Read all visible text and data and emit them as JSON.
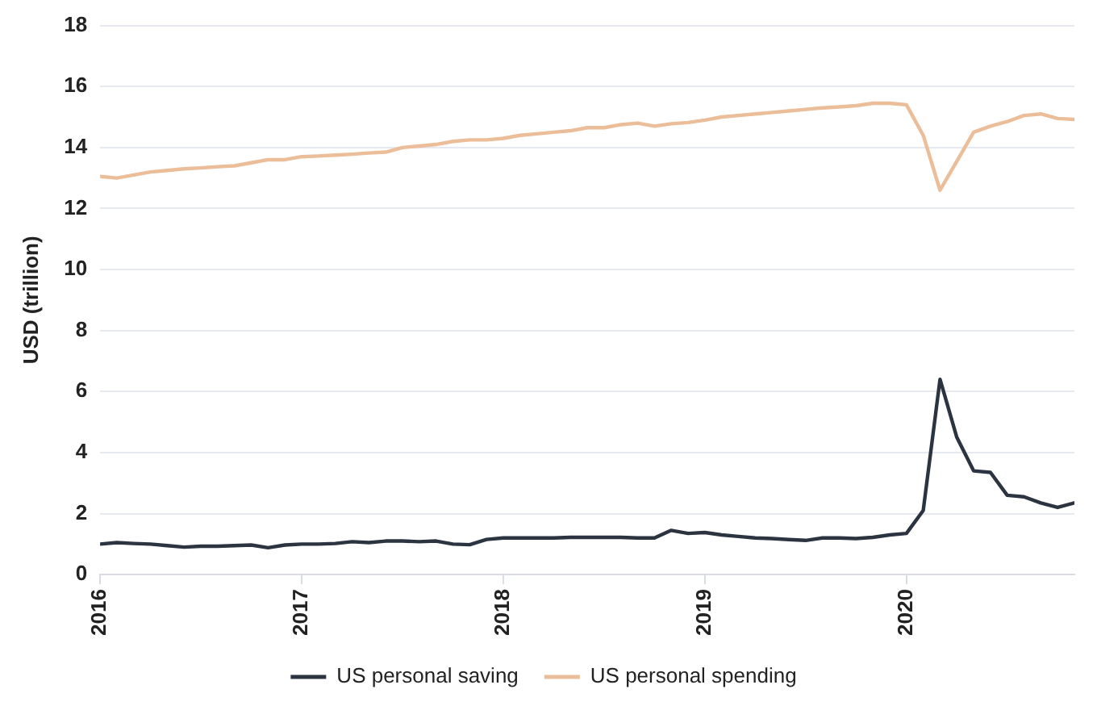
{
  "chart_data": {
    "type": "line",
    "ylabel": "USD (trillion)",
    "x": [
      "2016-01",
      "2016-02",
      "2016-03",
      "2016-04",
      "2016-05",
      "2016-06",
      "2016-07",
      "2016-08",
      "2016-09",
      "2016-10",
      "2016-11",
      "2016-12",
      "2017-01",
      "2017-02",
      "2017-03",
      "2017-04",
      "2017-05",
      "2017-06",
      "2017-07",
      "2017-08",
      "2017-09",
      "2017-10",
      "2017-11",
      "2017-12",
      "2018-01",
      "2018-02",
      "2018-03",
      "2018-04",
      "2018-05",
      "2018-06",
      "2018-07",
      "2018-08",
      "2018-09",
      "2018-10",
      "2018-11",
      "2018-12",
      "2019-01",
      "2019-02",
      "2019-03",
      "2019-04",
      "2019-05",
      "2019-06",
      "2019-07",
      "2019-08",
      "2019-09",
      "2019-10",
      "2019-11",
      "2019-12",
      "2020-01",
      "2020-02",
      "2020-03",
      "2020-04",
      "2020-05",
      "2020-06",
      "2020-07",
      "2020-08",
      "2020-09",
      "2020-10",
      "2020-11"
    ],
    "series": [
      {
        "name": "US personal saving",
        "color": "#2b3440",
        "values": [
          1.0,
          1.05,
          1.02,
          1.0,
          0.95,
          0.9,
          0.93,
          0.93,
          0.95,
          0.97,
          0.88,
          0.97,
          1.0,
          1.0,
          1.02,
          1.08,
          1.05,
          1.1,
          1.1,
          1.08,
          1.1,
          1.0,
          0.98,
          1.15,
          1.2,
          1.2,
          1.2,
          1.2,
          1.22,
          1.22,
          1.22,
          1.22,
          1.2,
          1.2,
          1.45,
          1.35,
          1.38,
          1.3,
          1.25,
          1.2,
          1.18,
          1.15,
          1.12,
          1.2,
          1.2,
          1.18,
          1.22,
          1.3,
          1.35,
          2.1,
          6.4,
          4.5,
          3.4,
          3.35,
          2.6,
          2.55,
          2.35,
          2.2,
          2.35
        ]
      },
      {
        "name": "US personal spending",
        "color": "#ebbd98",
        "values": [
          13.05,
          13.0,
          13.1,
          13.2,
          13.25,
          13.3,
          13.33,
          13.37,
          13.4,
          13.5,
          13.6,
          13.6,
          13.7,
          13.72,
          13.75,
          13.78,
          13.82,
          13.85,
          14.0,
          14.05,
          14.1,
          14.2,
          14.25,
          14.25,
          14.3,
          14.4,
          14.45,
          14.5,
          14.55,
          14.65,
          14.65,
          14.75,
          14.8,
          14.7,
          14.78,
          14.82,
          14.9,
          15.0,
          15.05,
          15.1,
          15.15,
          15.2,
          15.25,
          15.3,
          15.33,
          15.37,
          15.45,
          15.45,
          15.4,
          14.4,
          12.6,
          13.55,
          14.5,
          14.7,
          14.85,
          15.05,
          15.1,
          14.95,
          14.92
        ]
      }
    ],
    "xlim": [
      "2016-01",
      "2020-11"
    ],
    "xticks": [
      "2016",
      "2017",
      "2018",
      "2019",
      "2020"
    ],
    "ylim": [
      0,
      18
    ],
    "yticks": [
      0,
      2,
      4,
      6,
      8,
      10,
      12,
      14,
      16,
      18
    ],
    "grid": "y",
    "legend": "bottom",
    "marker": "none",
    "line_style": "solid"
  }
}
